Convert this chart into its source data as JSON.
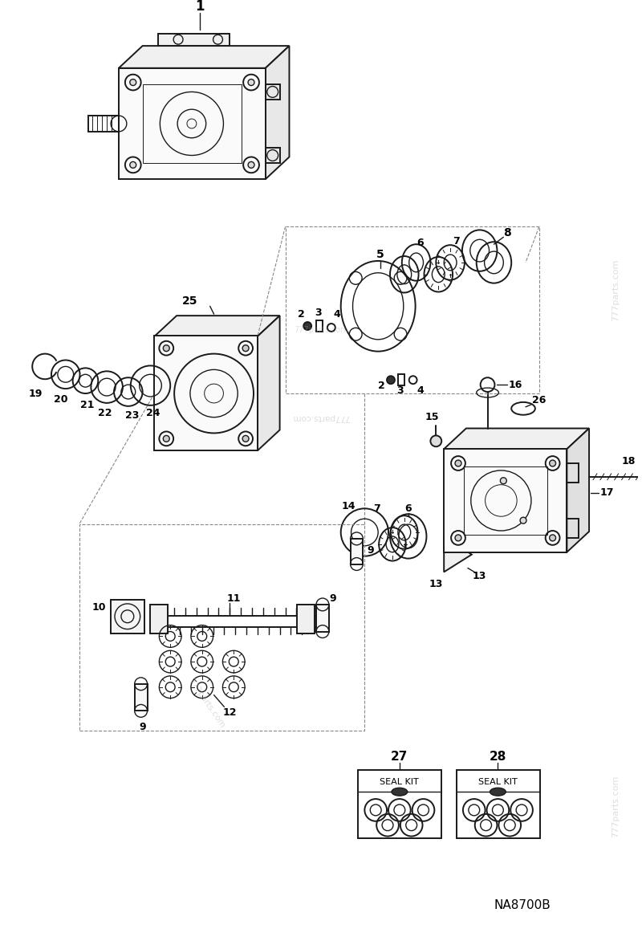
{
  "bg_color": "#ffffff",
  "line_color": "#1a1a1a",
  "gray_color": "#888888",
  "title": "NA8700B",
  "watermark_text": "777parts.com",
  "watermark_alpha": 0.4
}
